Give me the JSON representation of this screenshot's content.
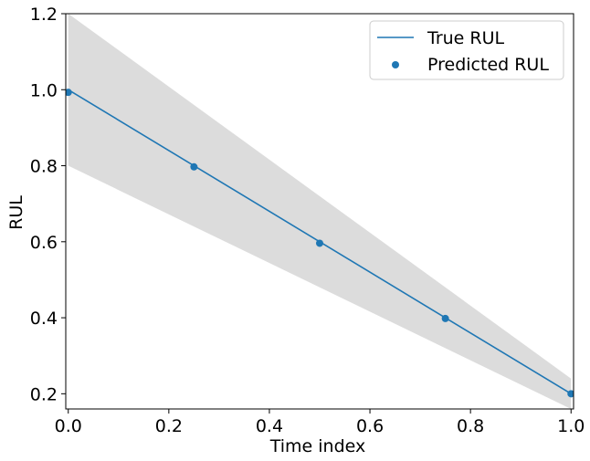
{
  "chart_data": {
    "type": "line",
    "xlabel": "Time index",
    "ylabel": "RUL",
    "xlim": [
      -0.005,
      1.005
    ],
    "ylim": [
      0.16,
      1.2
    ],
    "xticks": [
      0.0,
      0.2,
      0.4,
      0.6,
      0.8,
      1.0
    ],
    "xtick_labels": [
      "0.0",
      "0.2",
      "0.4",
      "0.6",
      "0.8",
      "1.0"
    ],
    "yticks": [
      0.2,
      0.4,
      0.6,
      0.8,
      1.0,
      1.2
    ],
    "ytick_labels": [
      "0.2",
      "0.4",
      "0.6",
      "0.8",
      "1.0",
      "1.2"
    ],
    "grid": false,
    "legend_position": "top-right",
    "series": [
      {
        "name": "True RUL",
        "kind": "line",
        "color": "#1f77b4",
        "x": [
          0.0,
          1.0
        ],
        "y": [
          1.0,
          0.2
        ]
      },
      {
        "name": "Predicted RUL",
        "kind": "scatter",
        "color": "#1f77b4",
        "x": [
          0.0,
          0.25,
          0.5,
          0.75,
          1.0
        ],
        "y": [
          0.993,
          0.797,
          0.596,
          0.398,
          0.2
        ]
      }
    ],
    "band": {
      "color": "#dcdcdc",
      "x": [
        0.0,
        1.0
      ],
      "upper": [
        1.2,
        0.24
      ],
      "lower": [
        0.8,
        0.16
      ]
    }
  }
}
